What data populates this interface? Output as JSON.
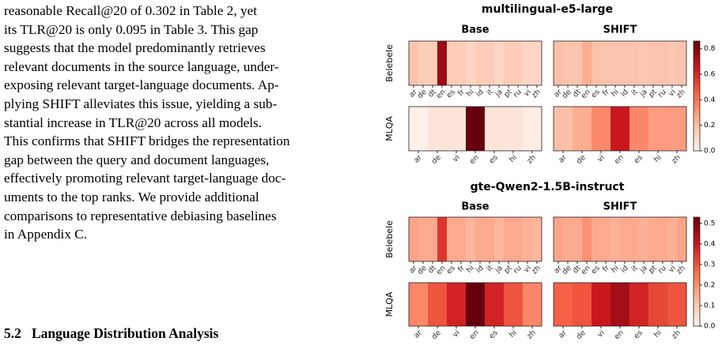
{
  "text": {
    "lines": [
      "reasonable Recall@20 of 0.302 in Table 2, yet",
      "its TLR@20 is only 0.095 in Table 3. This gap",
      "suggests that the model predominantly retrieves",
      "relevant documents in the source language, under-",
      "exposing relevant target-language documents. Ap-",
      "plying SHIFT alleviates this issue, yielding a sub-",
      "stantial increase in TLR@20 across all models.",
      "This confirms that SHIFT bridges the representation",
      "gap between the query and document languages,",
      "effectively promoting relevant target-language doc-",
      "uments to the top ranks. We provide additional",
      "comparisons to representative debiasing baselines",
      "in Appendix C."
    ],
    "heading_number": "5.2",
    "heading_title": "Language Distribution Analysis"
  },
  "chart_data": [
    {
      "type": "heatmap",
      "title": "multilingual-e5-large",
      "columns": [
        "Base",
        "SHIFT"
      ],
      "rows": [
        {
          "name": "Belebele",
          "categories": [
            "ar",
            "de",
            "dt",
            "en",
            "es",
            "fr",
            "hi",
            "id",
            "it",
            "ja",
            "pt",
            "ru",
            "vi",
            "zh"
          ],
          "values": [
            [
              0.18,
              0.15,
              0.15,
              0.75,
              0.15,
              0.15,
              0.12,
              0.15,
              0.15,
              0.12,
              0.15,
              0.15,
              0.12,
              0.12
            ],
            [
              0.2,
              0.18,
              0.18,
              0.25,
              0.2,
              0.18,
              0.18,
              0.18,
              0.18,
              0.17,
              0.18,
              0.18,
              0.17,
              0.18
            ]
          ]
        },
        {
          "name": "MLQA",
          "categories": [
            "ar",
            "de",
            "vi",
            "en",
            "es",
            "hi",
            "zh"
          ],
          "values": [
            [
              0.02,
              0.06,
              0.06,
              0.86,
              0.06,
              0.06,
              0.03
            ],
            [
              0.2,
              0.25,
              0.35,
              0.65,
              0.35,
              0.3,
              0.3
            ]
          ]
        }
      ],
      "clim": [
        0,
        0.86
      ],
      "cticks": [
        {
          "value": 0,
          "label": "0.0"
        },
        0.2,
        0.4,
        0.6,
        0.8
      ]
    },
    {
      "type": "heatmap",
      "title": "gte-Qwen2-1.5B-instruct",
      "columns": [
        "Base",
        "SHIFT"
      ],
      "rows": [
        {
          "name": "Belebele",
          "categories": [
            "ar",
            "de",
            "dt",
            "en",
            "es",
            "fr",
            "hi",
            "id",
            "it",
            "ja",
            "pt",
            "ru",
            "vi",
            "zh"
          ],
          "values": [
            [
              0.17,
              0.16,
              0.16,
              0.35,
              0.16,
              0.16,
              0.14,
              0.16,
              0.16,
              0.14,
              0.16,
              0.16,
              0.15,
              0.14
            ],
            [
              0.17,
              0.16,
              0.16,
              0.2,
              0.16,
              0.16,
              0.15,
              0.16,
              0.16,
              0.15,
              0.16,
              0.16,
              0.15,
              0.17
            ]
          ]
        },
        {
          "name": "MLQA",
          "categories": [
            "ar",
            "de",
            "vi",
            "en",
            "es",
            "hi",
            "zh"
          ],
          "values": [
            [
              0.22,
              0.3,
              0.38,
              0.53,
              0.38,
              0.3,
              0.22
            ],
            [
              0.28,
              0.3,
              0.4,
              0.45,
              0.38,
              0.32,
              0.3
            ]
          ]
        }
      ],
      "clim": [
        0,
        0.53
      ],
      "cticks": [
        {
          "value": 0,
          "label": "0.0"
        },
        0.1,
        0.2,
        0.3,
        0.4,
        0.5
      ]
    }
  ]
}
